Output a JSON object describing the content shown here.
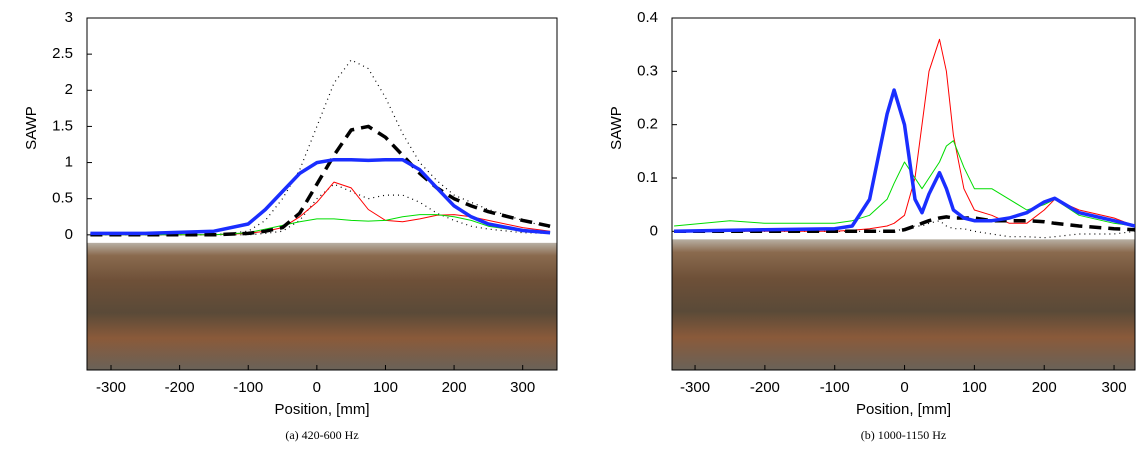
{
  "chart_data": [
    {
      "type": "line",
      "caption": "(a) 420-600 Hz",
      "xlabel": "Position, [mm]",
      "ylabel": "SAWP",
      "xlim": [
        -335,
        350
      ],
      "ylim": [
        -1.87,
        3
      ],
      "xticks": [
        -300,
        -200,
        -100,
        0,
        100,
        200,
        300
      ],
      "yticks": [
        0,
        0.5,
        1,
        1.5,
        2,
        2.5,
        3
      ],
      "x": [
        -330,
        -250,
        -150,
        -100,
        -75,
        -50,
        -25,
        0,
        25,
        50,
        75,
        100,
        125,
        150,
        175,
        200,
        225,
        250,
        300,
        340
      ],
      "series": [
        {
          "color": "#000000",
          "width": 1.2,
          "dash": "dotted",
          "values": [
            0,
            0,
            0,
            0.05,
            0.2,
            0.5,
            0.9,
            1.5,
            2.1,
            2.42,
            2.3,
            1.9,
            1.4,
            1.0,
            0.75,
            0.55,
            0.45,
            0.35,
            0.2,
            0.1
          ]
        },
        {
          "color": "#000000",
          "width": 1.2,
          "dash": "dotted",
          "values": [
            0,
            0,
            0,
            0,
            0.02,
            0.05,
            0.2,
            0.5,
            0.7,
            0.6,
            0.5,
            0.55,
            0.55,
            0.45,
            0.3,
            0.2,
            0.12,
            0.08,
            0.03,
            0.02
          ]
        },
        {
          "color": "#ff0000",
          "width": 1,
          "dash": "solid",
          "values": [
            0,
            0,
            0,
            0.02,
            0.05,
            0.1,
            0.25,
            0.45,
            0.73,
            0.65,
            0.35,
            0.2,
            0.18,
            0.22,
            0.27,
            0.28,
            0.25,
            0.2,
            0.1,
            0.05
          ]
        },
        {
          "color": "#00dd00",
          "width": 1,
          "dash": "solid",
          "values": [
            0,
            0,
            0,
            0.03,
            0.08,
            0.13,
            0.18,
            0.22,
            0.22,
            0.2,
            0.19,
            0.2,
            0.25,
            0.28,
            0.28,
            0.25,
            0.2,
            0.12,
            0.05,
            0.03
          ]
        },
        {
          "color": "#000000",
          "width": 3.5,
          "dash": "dashed",
          "values": [
            0,
            0,
            0,
            0.02,
            0.05,
            0.1,
            0.3,
            0.7,
            1.1,
            1.45,
            1.5,
            1.35,
            1.1,
            0.85,
            0.65,
            0.5,
            0.4,
            0.32,
            0.2,
            0.12
          ]
        },
        {
          "color": "#1a2eff",
          "width": 3.5,
          "dash": "solid",
          "values": [
            0.02,
            0.02,
            0.05,
            0.15,
            0.35,
            0.6,
            0.85,
            1.0,
            1.04,
            1.04,
            1.03,
            1.04,
            1.04,
            0.9,
            0.65,
            0.4,
            0.25,
            0.15,
            0.06,
            0.03
          ]
        }
      ]
    },
    {
      "type": "line",
      "caption": "(b) 1000-1150 Hz",
      "xlabel": "Position, [mm]",
      "ylabel": "SAWP",
      "xlim": [
        -333,
        330
      ],
      "ylim": [
        -0.26,
        0.4
      ],
      "xticks": [
        -300,
        -200,
        -100,
        0,
        100,
        200,
        300
      ],
      "yticks": [
        0,
        0.1,
        0.2,
        0.3,
        0.4
      ],
      "x": [
        -330,
        -250,
        -200,
        -100,
        -75,
        -50,
        -25,
        -15,
        0,
        15,
        25,
        35,
        50,
        60,
        70,
        85,
        100,
        125,
        150,
        175,
        200,
        215,
        250,
        300,
        330
      ],
      "series": [
        {
          "color": "#000000",
          "width": 1.2,
          "dash": "dotted",
          "values": [
            0,
            0,
            0,
            0,
            0,
            0,
            0,
            0,
            0.005,
            0.01,
            0.01,
            0.015,
            0.02,
            0.01,
            0.005,
            0.005,
            0,
            -0.005,
            -0.01,
            -0.01,
            -0.012,
            -0.01,
            -0.005,
            -0.005,
            0
          ]
        },
        {
          "color": "#ff0000",
          "width": 1,
          "dash": "solid",
          "values": [
            0,
            0,
            0,
            0,
            0.002,
            0.005,
            0.01,
            0.015,
            0.03,
            0.1,
            0.2,
            0.3,
            0.36,
            0.3,
            0.18,
            0.08,
            0.04,
            0.03,
            0.015,
            0.015,
            0.04,
            0.06,
            0.04,
            0.025,
            0.01
          ]
        },
        {
          "color": "#00dd00",
          "width": 1,
          "dash": "solid",
          "values": [
            0.01,
            0.02,
            0.015,
            0.015,
            0.02,
            0.03,
            0.06,
            0.09,
            0.13,
            0.1,
            0.08,
            0.1,
            0.13,
            0.16,
            0.17,
            0.12,
            0.08,
            0.08,
            0.06,
            0.04,
            0.05,
            0.06,
            0.03,
            0.015,
            0.01
          ]
        },
        {
          "color": "#000000",
          "width": 3.5,
          "dash": "dashed",
          "values": [
            0,
            0,
            0,
            0,
            0,
            0,
            0,
            0,
            0.003,
            0.01,
            0.015,
            0.02,
            0.025,
            0.027,
            0.025,
            0.025,
            0.025,
            0.02,
            0.02,
            0.02,
            0.018,
            0.015,
            0.01,
            0.005,
            0.003
          ]
        },
        {
          "color": "#1a2eff",
          "width": 3.5,
          "dash": "solid",
          "values": [
            0,
            0.002,
            0.003,
            0.005,
            0.01,
            0.06,
            0.22,
            0.265,
            0.2,
            0.06,
            0.035,
            0.07,
            0.11,
            0.08,
            0.04,
            0.025,
            0.02,
            0.02,
            0.025,
            0.035,
            0.055,
            0.062,
            0.035,
            0.02,
            0.01
          ]
        }
      ]
    }
  ]
}
